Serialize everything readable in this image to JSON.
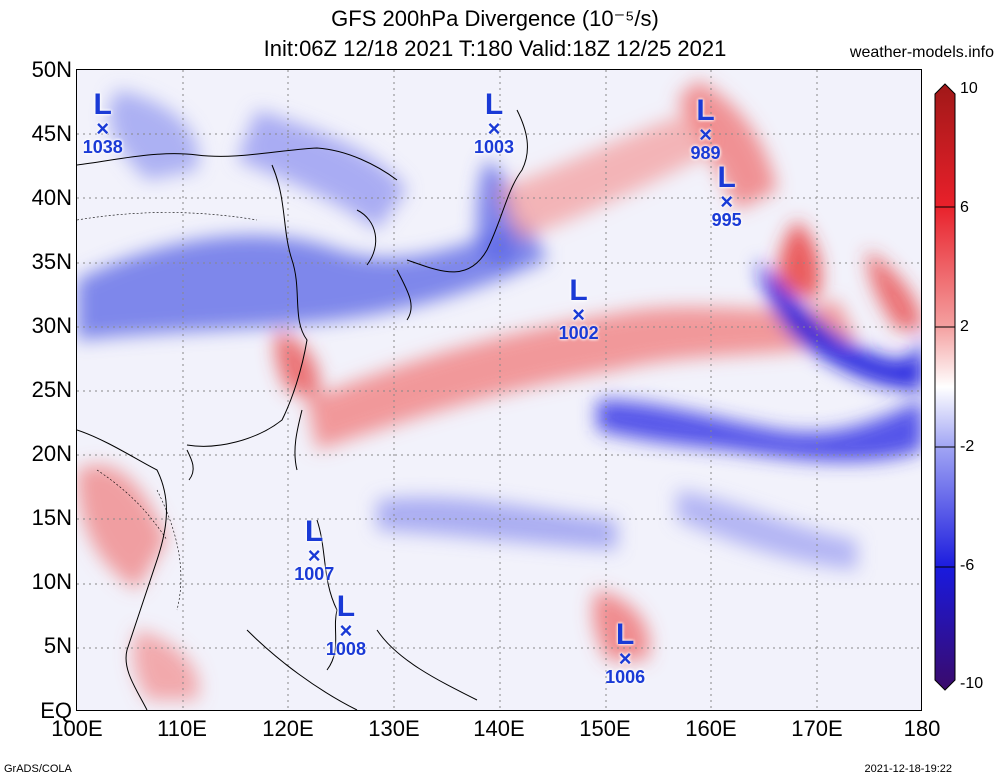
{
  "header": {
    "title_line1": "GFS 200hPa Divergence (10⁻⁵/s)",
    "title_line2": "Init:06Z 12/18 2021 T:180 Valid:18Z 12/25 2021",
    "site": "weather-models.info"
  },
  "footer": {
    "left": "GrADS/COLA",
    "right": "2021-12-18-19:22"
  },
  "axes": {
    "lat_labels": [
      "50N",
      "45N",
      "40N",
      "35N",
      "30N",
      "25N",
      "20N",
      "15N",
      "10N",
      "5N",
      "EQ"
    ],
    "lon_labels": [
      "100E",
      "110E",
      "120E",
      "130E",
      "140E",
      "150E",
      "160E",
      "170E",
      "180"
    ]
  },
  "colorbar": {
    "labels": [
      "10",
      "6",
      "2",
      "-2",
      "-6",
      "-10"
    ],
    "colors": [
      "#b01818",
      "#e8202a",
      "#f08a8a",
      "#ffffff",
      "#8a8ef0",
      "#1a1add",
      "#3a0a6a"
    ]
  },
  "lows": [
    {
      "symbol": "L",
      "marker": "×",
      "pressure": "1038",
      "lon": 103,
      "lat": 45.5
    },
    {
      "symbol": "L",
      "marker": "×",
      "pressure": "1003",
      "lon": 140,
      "lat": 45.5
    },
    {
      "symbol": "L",
      "marker": "×",
      "pressure": "989",
      "lon": 160,
      "lat": 45
    },
    {
      "symbol": "L",
      "marker": "×",
      "pressure": "995",
      "lon": 162,
      "lat": 39.8
    },
    {
      "symbol": "L",
      "marker": "×",
      "pressure": "1002",
      "lon": 148,
      "lat": 31
    },
    {
      "symbol": "L",
      "marker": "×",
      "pressure": "1007",
      "lon": 123,
      "lat": 12.2
    },
    {
      "symbol": "L",
      "marker": "×",
      "pressure": "1008",
      "lon": 126,
      "lat": 6.4
    },
    {
      "symbol": "L",
      "marker": "×",
      "pressure": "1006",
      "lon": 152.4,
      "lat": 4.2
    }
  ]
}
